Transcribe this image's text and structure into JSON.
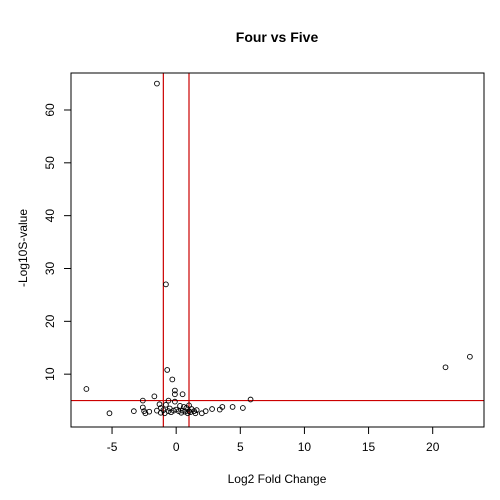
{
  "chart_data": {
    "type": "scatter",
    "title": "Four vs Five",
    "xlabel": "Log2 Fold Change",
    "ylabel": "-Log10S-value",
    "xlim": [
      -8.2,
      24
    ],
    "ylim": [
      0,
      67
    ],
    "xticks": [
      -5,
      0,
      5,
      10,
      15,
      20
    ],
    "yticks": [
      10,
      20,
      30,
      40,
      50,
      60
    ],
    "grid": false,
    "reference_lines": {
      "color": "#cc0000",
      "vertical": [
        -1,
        1
      ],
      "horizontal": [
        5
      ]
    },
    "points": [
      {
        "x": -1.5,
        "y": 65
      },
      {
        "x": -0.8,
        "y": 27
      },
      {
        "x": -0.7,
        "y": 10.8
      },
      {
        "x": -0.3,
        "y": 9
      },
      {
        "x": -7.0,
        "y": 7.2
      },
      {
        "x": 21.0,
        "y": 11.3
      },
      {
        "x": 22.9,
        "y": 13.3
      },
      {
        "x": -0.1,
        "y": 6.9
      },
      {
        "x": -0.1,
        "y": 6.2
      },
      {
        "x": 0.5,
        "y": 6.2
      },
      {
        "x": -1.7,
        "y": 5.8
      },
      {
        "x": 5.8,
        "y": 5.2
      },
      {
        "x": -2.6,
        "y": 5
      },
      {
        "x": -0.6,
        "y": 5
      },
      {
        "x": -0.1,
        "y": 4.8
      },
      {
        "x": -1.3,
        "y": 4.3
      },
      {
        "x": -0.8,
        "y": 4.2
      },
      {
        "x": 0.3,
        "y": 4
      },
      {
        "x": 0.6,
        "y": 3.8
      },
      {
        "x": 1.0,
        "y": 4.1
      },
      {
        "x": -2.6,
        "y": 3.7
      },
      {
        "x": -1.2,
        "y": 3.6
      },
      {
        "x": -0.5,
        "y": 3.5
      },
      {
        "x": 0.0,
        "y": 3.3
      },
      {
        "x": 0.8,
        "y": 3.6
      },
      {
        "x": 1.2,
        "y": 3.4
      },
      {
        "x": 4.4,
        "y": 3.8
      },
      {
        "x": 3.6,
        "y": 3.8
      },
      {
        "x": 5.2,
        "y": 3.6
      },
      {
        "x": -3.3,
        "y": 3
      },
      {
        "x": -2.5,
        "y": 3
      },
      {
        "x": -2.1,
        "y": 2.9
      },
      {
        "x": -1.5,
        "y": 3.1
      },
      {
        "x": -1.0,
        "y": 3.2
      },
      {
        "x": -0.6,
        "y": 3
      },
      {
        "x": -0.2,
        "y": 3.1
      },
      {
        "x": 0.2,
        "y": 3.0
      },
      {
        "x": 0.5,
        "y": 3.1
      },
      {
        "x": 0.7,
        "y": 2.9
      },
      {
        "x": 1.0,
        "y": 3.0
      },
      {
        "x": 1.4,
        "y": 3.0
      },
      {
        "x": 1.6,
        "y": 3.2
      },
      {
        "x": 2.3,
        "y": 3.0
      },
      {
        "x": 2.8,
        "y": 3.4
      },
      {
        "x": 3.4,
        "y": 3.3
      },
      {
        "x": -5.2,
        "y": 2.6
      },
      {
        "x": -2.4,
        "y": 2.6
      },
      {
        "x": -1.2,
        "y": 2.7
      },
      {
        "x": -0.9,
        "y": 2.6
      },
      {
        "x": -0.4,
        "y": 2.8
      },
      {
        "x": 0.4,
        "y": 2.7
      },
      {
        "x": 0.9,
        "y": 2.6
      },
      {
        "x": 1.1,
        "y": 2.8
      },
      {
        "x": 1.5,
        "y": 2.6
      },
      {
        "x": 2.0,
        "y": 2.6
      }
    ]
  }
}
